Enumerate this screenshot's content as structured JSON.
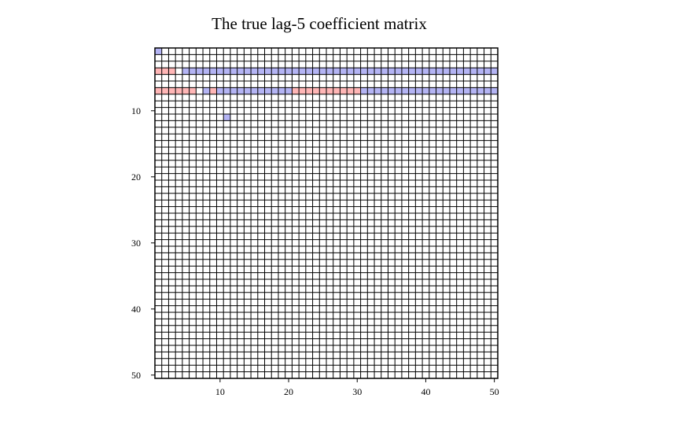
{
  "chart_data": {
    "type": "heatmap",
    "title": "The true lag-5 coefficient matrix",
    "xlabel": "",
    "ylabel": "",
    "n_rows": 50,
    "n_cols": 50,
    "xlim": [
      1,
      50
    ],
    "ylim": [
      1,
      50
    ],
    "y_axis_direction": "top-to-bottom",
    "x_ticks": [
      10,
      20,
      30,
      40,
      50
    ],
    "y_ticks": [
      10,
      20,
      30,
      40,
      50
    ],
    "grid": true,
    "colors": {
      "positive": "#ffb6b6",
      "negative": "#b4b4f4",
      "zero": "#ffffff",
      "grid": "#000000"
    },
    "nonzero_cells": [
      {
        "row": 1,
        "cols": [
          1,
          1
        ],
        "sign": "negative"
      },
      {
        "row": 4,
        "cols": [
          1,
          3
        ],
        "sign": "positive"
      },
      {
        "row": 4,
        "cols": [
          5,
          50
        ],
        "sign": "negative"
      },
      {
        "row": 7,
        "cols": [
          1,
          6
        ],
        "sign": "positive"
      },
      {
        "row": 7,
        "cols": [
          8,
          8
        ],
        "sign": "negative"
      },
      {
        "row": 7,
        "cols": [
          9,
          9
        ],
        "sign": "positive"
      },
      {
        "row": 7,
        "cols": [
          10,
          20
        ],
        "sign": "negative"
      },
      {
        "row": 7,
        "cols": [
          21,
          30
        ],
        "sign": "positive"
      },
      {
        "row": 7,
        "cols": [
          31,
          50
        ],
        "sign": "negative"
      },
      {
        "row": 11,
        "cols": [
          11,
          11
        ],
        "sign": "negative"
      }
    ]
  }
}
